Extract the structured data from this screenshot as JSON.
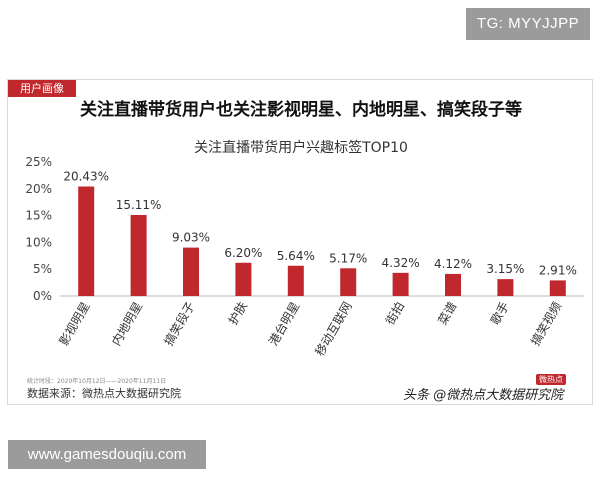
{
  "badges": {
    "top_right": "TG: MYYJJPP",
    "bottom_left": "www.gamesdouqiu.com"
  },
  "card": {
    "tag": "用户画像",
    "headline": "关注直播带货用户也关注影视明星、内地明星、搞笑段子等",
    "footnote_small": "统计时段：2020年10月12日——2020年11月11日",
    "source": "数据来源：微热点大数据研究院",
    "watermark": "头条 @微热点大数据研究院",
    "watermark_logo": "微热点"
  },
  "colors": {
    "bar": "#c0282d",
    "tag_bg": "#c0282d",
    "badge_bg": "#9b9b9b"
  },
  "chart_data": {
    "type": "bar",
    "title": "关注直播带货用户兴趣标签TOP10",
    "xlabel": "",
    "ylabel": "",
    "categories": [
      "影视明星",
      "内地明星",
      "搞笑段子",
      "护肤",
      "港台明星",
      "移动互联网",
      "街拍",
      "菜谱",
      "歌手",
      "搞笑视频"
    ],
    "values": [
      20.43,
      15.11,
      9.03,
      6.2,
      5.64,
      5.17,
      4.32,
      4.12,
      3.15,
      2.91
    ],
    "value_labels": [
      "20.43%",
      "15.11%",
      "9.03%",
      "6.20%",
      "5.64%",
      "5.17%",
      "4.32%",
      "4.12%",
      "3.15%",
      "2.91%"
    ],
    "ylim": [
      0,
      25
    ],
    "y_ticks": [
      0,
      5,
      10,
      15,
      20,
      25
    ],
    "y_tick_labels": [
      "0%",
      "5%",
      "10%",
      "15%",
      "20%",
      "25%"
    ],
    "grid": false,
    "legend": "none"
  }
}
